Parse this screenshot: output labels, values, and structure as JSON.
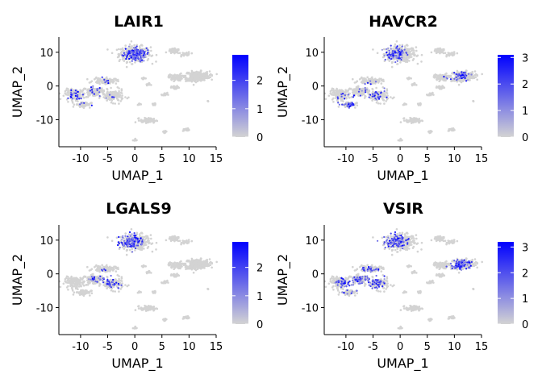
{
  "chart_data": [
    {
      "type": "scatter",
      "title": "LAIR1",
      "xlabel": "UMAP_1",
      "ylabel": "UMAP_2",
      "xlim": [
        -14,
        15
      ],
      "ylim": [
        -18,
        14.5
      ],
      "x_ticks": [
        -10,
        -5,
        0,
        5,
        10,
        15
      ],
      "y_ticks": [
        -10,
        0,
        10
      ],
      "legend": {
        "position": "right",
        "min": 0,
        "max": 2.9,
        "ticks": [
          0,
          1,
          2
        ],
        "low_color": "#d3d3d3",
        "high_color": "#0000ff"
      },
      "hotspots": [
        {
          "x": 0.5,
          "y": 9.5,
          "intensity": 0.75
        },
        {
          "x": -11.5,
          "y": -3,
          "intensity": 0.35
        },
        {
          "x": -7.5,
          "y": 0.5,
          "intensity": 0.3
        },
        {
          "x": -5.5,
          "y": -5,
          "intensity": 0.3
        }
      ]
    },
    {
      "type": "scatter",
      "title": "HAVCR2",
      "xlabel": "UMAP_1",
      "ylabel": "UMAP_2",
      "xlim": [
        -14,
        15
      ],
      "ylim": [
        -18,
        14.5
      ],
      "x_ticks": [
        -10,
        -5,
        0,
        5,
        10,
        15
      ],
      "y_ticks": [
        -10,
        0,
        10
      ],
      "legend": {
        "position": "right",
        "min": 0,
        "max": 3.1,
        "ticks": [
          0,
          1,
          2,
          3
        ],
        "low_color": "#d3d3d3",
        "high_color": "#0000ff"
      },
      "hotspots": [
        {
          "x": -1.5,
          "y": 9.5,
          "intensity": 0.55
        },
        {
          "x": -9.5,
          "y": -5,
          "intensity": 0.5
        },
        {
          "x": -4.5,
          "y": -1,
          "intensity": 0.35
        },
        {
          "x": 11,
          "y": 3,
          "intensity": 0.2
        }
      ]
    },
    {
      "type": "scatter",
      "title": "LGALS9",
      "xlabel": "UMAP_1",
      "ylabel": "UMAP_2",
      "xlim": [
        -14,
        15
      ],
      "ylim": [
        -18,
        14.5
      ],
      "x_ticks": [
        -10,
        -5,
        0,
        5,
        10,
        15
      ],
      "y_ticks": [
        -10,
        0,
        10
      ],
      "legend": {
        "position": "right",
        "min": 0,
        "max": 2.9,
        "ticks": [
          0,
          1,
          2
        ],
        "low_color": "#d3d3d3",
        "high_color": "#0000ff"
      },
      "hotspots": [
        {
          "x": -1.5,
          "y": 9.5,
          "intensity": 0.8
        },
        {
          "x": -6,
          "y": -1.5,
          "intensity": 0.35
        },
        {
          "x": -3.5,
          "y": -3.5,
          "intensity": 0.3
        }
      ]
    },
    {
      "type": "scatter",
      "title": "VSIR",
      "xlabel": "UMAP_1",
      "ylabel": "UMAP_2",
      "xlim": [
        -14,
        15
      ],
      "ylim": [
        -18,
        14.5
      ],
      "x_ticks": [
        -10,
        -5,
        0,
        5,
        10,
        15
      ],
      "y_ticks": [
        -10,
        0,
        10
      ],
      "legend": {
        "position": "right",
        "min": 0,
        "max": 3.2,
        "ticks": [
          0,
          1,
          2,
          3
        ],
        "low_color": "#d3d3d3",
        "high_color": "#0000ff"
      },
      "hotspots": [
        {
          "x": -1.5,
          "y": 10,
          "intensity": 0.75
        },
        {
          "x": -9.5,
          "y": -3.5,
          "intensity": 0.6
        },
        {
          "x": -5,
          "y": -2,
          "intensity": 0.55
        },
        {
          "x": -6.5,
          "y": 0.5,
          "intensity": 0.45
        },
        {
          "x": 11,
          "y": 3,
          "intensity": 0.35
        }
      ]
    }
  ],
  "clusters": [
    {
      "x": 0,
      "y": 9.5,
      "sx": 2.4,
      "sy": 1.9,
      "n": 380
    },
    {
      "x": 7.2,
      "y": 10.3,
      "sx": 0.9,
      "sy": 0.6,
      "n": 60
    },
    {
      "x": 9.5,
      "y": 9.5,
      "sx": 0.7,
      "sy": 0.5,
      "n": 30
    },
    {
      "x": 11.5,
      "y": 3,
      "sx": 1.9,
      "sy": 1.1,
      "n": 300
    },
    {
      "x": 7.5,
      "y": 2.5,
      "sx": 1.0,
      "sy": 0.8,
      "n": 80
    },
    {
      "x": 7.5,
      "y": -0.5,
      "sx": 0.6,
      "sy": 0.4,
      "n": 30
    },
    {
      "x": 10.5,
      "y": 1.8,
      "sx": 0.8,
      "sy": 0.5,
      "n": 40
    },
    {
      "x": -11,
      "y": -2.5,
      "sx": 1.6,
      "sy": 1.3,
      "n": 150
    },
    {
      "x": -7.5,
      "y": -1.5,
      "sx": 1.5,
      "sy": 1.0,
      "n": 120
    },
    {
      "x": -4,
      "y": -3,
      "sx": 1.6,
      "sy": 1.5,
      "n": 140
    },
    {
      "x": -5.5,
      "y": 1.5,
      "sx": 1.8,
      "sy": 0.7,
      "n": 110
    },
    {
      "x": -9.5,
      "y": -5.5,
      "sx": 1.2,
      "sy": 0.7,
      "n": 60
    },
    {
      "x": 1.5,
      "y": 2.3,
      "sx": 0.3,
      "sy": 0.3,
      "n": 12
    },
    {
      "x": 2.5,
      "y": 0.5,
      "sx": 0.3,
      "sy": 0.3,
      "n": 12
    },
    {
      "x": 3.5,
      "y": -5.5,
      "sx": 0.3,
      "sy": 0.3,
      "n": 10
    },
    {
      "x": 0.8,
      "y": -5.5,
      "sx": 0.3,
      "sy": 0.3,
      "n": 10
    },
    {
      "x": 5.5,
      "y": -2.5,
      "sx": 0.4,
      "sy": 0.4,
      "n": 14
    },
    {
      "x": 2.5,
      "y": -10.2,
      "sx": 1.2,
      "sy": 0.6,
      "n": 80
    },
    {
      "x": 9.5,
      "y": -13,
      "sx": 0.5,
      "sy": 0.4,
      "n": 20
    },
    {
      "x": 5.5,
      "y": -13.5,
      "sx": 0.3,
      "sy": 0.3,
      "n": 10
    },
    {
      "x": 0,
      "y": -16,
      "sx": 0.3,
      "sy": 0.3,
      "n": 12
    },
    {
      "x": 13.5,
      "y": -4.5,
      "sx": 0.1,
      "sy": 0.1,
      "n": 3
    }
  ]
}
